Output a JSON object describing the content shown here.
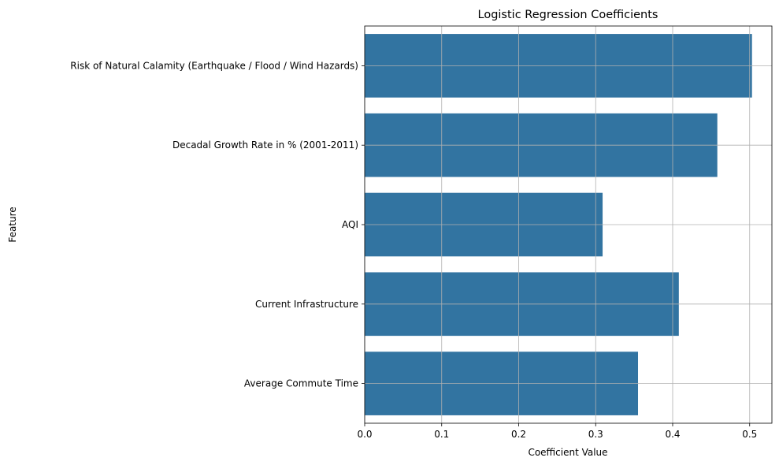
{
  "chart_data": {
    "type": "bar",
    "orientation": "horizontal",
    "title": "Logistic Regression Coefficients",
    "xlabel": "Coefficient Value",
    "ylabel": "Feature",
    "categories": [
      "Risk of Natural Calamity (Earthquake / Flood / Wind Hazards)",
      "Decadal Growth Rate in % (2001-2011)",
      "AQI",
      "Current Infrastructure",
      "Average Commute Time"
    ],
    "values": [
      0.503,
      0.458,
      0.309,
      0.408,
      0.355
    ],
    "xlim": [
      0,
      0.53
    ],
    "xticks": [
      0.0,
      0.1,
      0.2,
      0.3,
      0.4,
      0.5
    ],
    "xtick_labels": [
      "0.0",
      "0.1",
      "0.2",
      "0.3",
      "0.4",
      "0.5"
    ],
    "grid": true,
    "bar_color": "#3274a1"
  }
}
